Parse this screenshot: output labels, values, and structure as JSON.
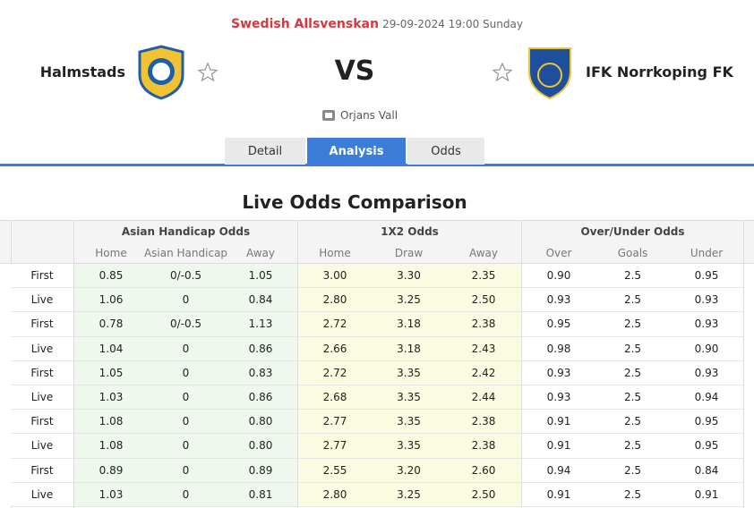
{
  "header": {
    "league": "Swedish Allsvenskan",
    "datetime": "29-09-2024 19:00 Sunday",
    "home_team": "Halmstads",
    "vs": "VS",
    "away_team": "IFK Norrkoping FK",
    "venue": "Orjans Vall"
  },
  "tabs": {
    "items": [
      "Detail",
      "Analysis",
      "Odds"
    ],
    "active": 1
  },
  "section_title": "Live Odds Comparison",
  "table": {
    "groups": [
      "Asian Handicap Odds",
      "1X2 Odds",
      "Over/Under Odds"
    ],
    "columns": [
      "Home",
      "Asian Handicap",
      "Away",
      "Home",
      "Draw",
      "Away",
      "Over",
      "Goals",
      "Under"
    ],
    "rows": [
      [
        "First",
        "0.85",
        "0/-0.5",
        "1.05",
        "3.00",
        "3.30",
        "2.35",
        "0.90",
        "2.5",
        "0.95"
      ],
      [
        "Live",
        "1.06",
        "0",
        "0.84",
        "2.80",
        "3.25",
        "2.50",
        "0.93",
        "2.5",
        "0.93"
      ],
      [
        "First",
        "0.78",
        "0/-0.5",
        "1.13",
        "2.72",
        "3.18",
        "2.38",
        "0.95",
        "2.5",
        "0.93"
      ],
      [
        "Live",
        "1.04",
        "0",
        "0.86",
        "2.66",
        "3.18",
        "2.43",
        "0.98",
        "2.5",
        "0.90"
      ],
      [
        "First",
        "1.05",
        "0",
        "0.83",
        "2.72",
        "3.35",
        "2.42",
        "0.93",
        "2.5",
        "0.93"
      ],
      [
        "Live",
        "1.03",
        "0",
        "0.86",
        "2.68",
        "3.35",
        "2.44",
        "0.93",
        "2.5",
        "0.94"
      ],
      [
        "First",
        "1.08",
        "0",
        "0.80",
        "2.77",
        "3.35",
        "2.38",
        "0.91",
        "2.5",
        "0.95"
      ],
      [
        "Live",
        "1.08",
        "0",
        "0.80",
        "2.77",
        "3.35",
        "2.38",
        "0.91",
        "2.5",
        "0.95"
      ],
      [
        "First",
        "0.89",
        "0",
        "0.89",
        "2.55",
        "3.20",
        "2.60",
        "0.94",
        "2.5",
        "0.84"
      ],
      [
        "Live",
        "1.03",
        "0",
        "0.81",
        "2.80",
        "3.25",
        "2.50",
        "0.91",
        "2.5",
        "0.91"
      ]
    ]
  }
}
